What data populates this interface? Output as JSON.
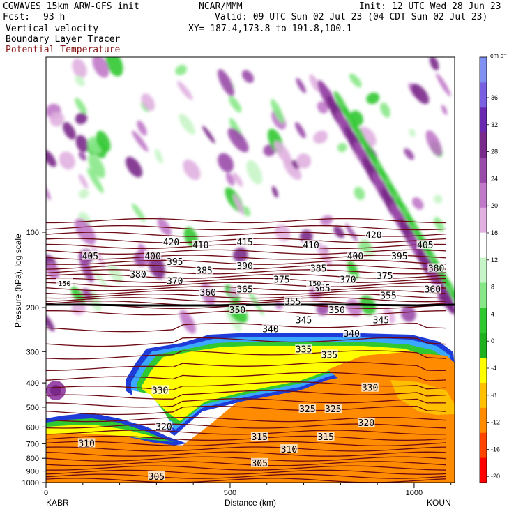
{
  "header": {
    "model": "CGWAVES 15km ARW-GFS init",
    "org": "NCAR/MMM",
    "init": "Init: 12 UTC Wed 28 Jun 23",
    "fcst_label": "Fcst:",
    "fcst_value": "93 h",
    "valid": "Valid: 09 UTC Sun 02 Jul 23 (04 CDT Sun 02 Jul 23)",
    "field1": "Vertical velocity",
    "field2": "Boundary Layer Tracer",
    "field3": "Potential Temperature",
    "xy": "XY= 187.4,173.8 to 191.8,100.1"
  },
  "axes": {
    "ylabel": "Pressure (hPa), log scale",
    "xlabel": "Distance (km)",
    "left_station": "KABR",
    "right_station": "KOUN"
  },
  "colorbar": {
    "unit": "cm s⁻¹",
    "labels": [
      "36",
      "32",
      "28",
      "24",
      "20",
      "16",
      "12",
      "8",
      "4",
      "0",
      "-4",
      "-8",
      "-12",
      "-16",
      "-20"
    ]
  },
  "chart_data": {
    "type": "heatmap",
    "title": "Vertical velocity",
    "xlabel": "Distance (km)",
    "ylabel": "Pressure (hPa), log scale",
    "x_ticks": [
      0,
      500,
      1000
    ],
    "x_range": [
      0,
      1110
    ],
    "y_ticks": [
      100,
      200,
      300,
      400,
      500,
      600,
      700,
      800,
      900,
      1000
    ],
    "y_scale": "log",
    "y_range": [
      1000,
      20
    ],
    "colorbar_levels": [
      -20,
      -16,
      -12,
      -8,
      -4,
      0,
      4,
      8,
      12,
      16,
      20,
      24,
      28,
      32,
      36
    ],
    "colorbar_colors": [
      "#8090f0",
      "#7860e0",
      "#6a2ab0",
      "#7a2a8a",
      "#9a4aa8",
      "#c078c8",
      "#e0b0e0",
      "#ffffff",
      "#c8f5c8",
      "#88e888",
      "#30c830",
      "#20b020",
      "#ffff00",
      "#ffc000",
      "#ff8c00",
      "#ff4400",
      "#ff0000"
    ],
    "isentrope_labels": [
      {
        "x": 320,
        "p": 600,
        "text": "320"
      },
      {
        "x": 120,
        "p": 125,
        "text": "405"
      },
      {
        "x": 110,
        "p": 700,
        "text": "310"
      },
      {
        "x": 300,
        "p": 950,
        "text": "305"
      },
      {
        "x": 310,
        "p": 430,
        "text": "330"
      },
      {
        "x": 340,
        "p": 110,
        "text": "420"
      },
      {
        "x": 290,
        "p": 125,
        "text": "400"
      },
      {
        "x": 420,
        "p": 113,
        "text": "410"
      },
      {
        "x": 540,
        "p": 110,
        "text": "415"
      },
      {
        "x": 720,
        "p": 113,
        "text": "410"
      },
      {
        "x": 890,
        "p": 103,
        "text": "420"
      },
      {
        "x": 1030,
        "p": 113,
        "text": "405"
      },
      {
        "x": 250,
        "p": 148,
        "text": "380"
      },
      {
        "x": 350,
        "p": 132,
        "text": "395"
      },
      {
        "x": 430,
        "p": 143,
        "text": "385"
      },
      {
        "x": 540,
        "p": 137,
        "text": "390"
      },
      {
        "x": 740,
        "p": 140,
        "text": "385"
      },
      {
        "x": 840,
        "p": 125,
        "text": "400"
      },
      {
        "x": 960,
        "p": 125,
        "text": "395"
      },
      {
        "x": 1060,
        "p": 140,
        "text": "380"
      },
      {
        "x": 350,
        "p": 157,
        "text": "370"
      },
      {
        "x": 440,
        "p": 175,
        "text": "360"
      },
      {
        "x": 540,
        "p": 170,
        "text": "365"
      },
      {
        "x": 640,
        "p": 155,
        "text": "375"
      },
      {
        "x": 750,
        "p": 168,
        "text": "365"
      },
      {
        "x": 820,
        "p": 155,
        "text": "370"
      },
      {
        "x": 920,
        "p": 150,
        "text": "375"
      },
      {
        "x": 1050,
        "p": 170,
        "text": "360"
      },
      {
        "x": 520,
        "p": 205,
        "text": "350"
      },
      {
        "x": 670,
        "p": 190,
        "text": "355"
      },
      {
        "x": 790,
        "p": 205,
        "text": "350"
      },
      {
        "x": 930,
        "p": 180,
        "text": "355"
      },
      {
        "x": 700,
        "p": 225,
        "text": "345"
      },
      {
        "x": 910,
        "p": 225,
        "text": "345"
      },
      {
        "x": 610,
        "p": 245,
        "text": "340"
      },
      {
        "x": 830,
        "p": 255,
        "text": "340"
      },
      {
        "x": 700,
        "p": 295,
        "text": "335"
      },
      {
        "x": 770,
        "p": 310,
        "text": "335"
      },
      {
        "x": 880,
        "p": 420,
        "text": "330"
      },
      {
        "x": 710,
        "p": 510,
        "text": "325"
      },
      {
        "x": 780,
        "p": 510,
        "text": "325"
      },
      {
        "x": 870,
        "p": 580,
        "text": "320"
      },
      {
        "x": 580,
        "p": 660,
        "text": "315"
      },
      {
        "x": 760,
        "p": 660,
        "text": "315"
      },
      {
        "x": 660,
        "p": 740,
        "text": "310"
      },
      {
        "x": 580,
        "p": 840,
        "text": "305"
      }
    ],
    "tropopause_labels": [
      {
        "x": 50,
        "p": 160,
        "text": "150"
      },
      {
        "x": 730,
        "p": 160,
        "text": "150"
      }
    ]
  }
}
